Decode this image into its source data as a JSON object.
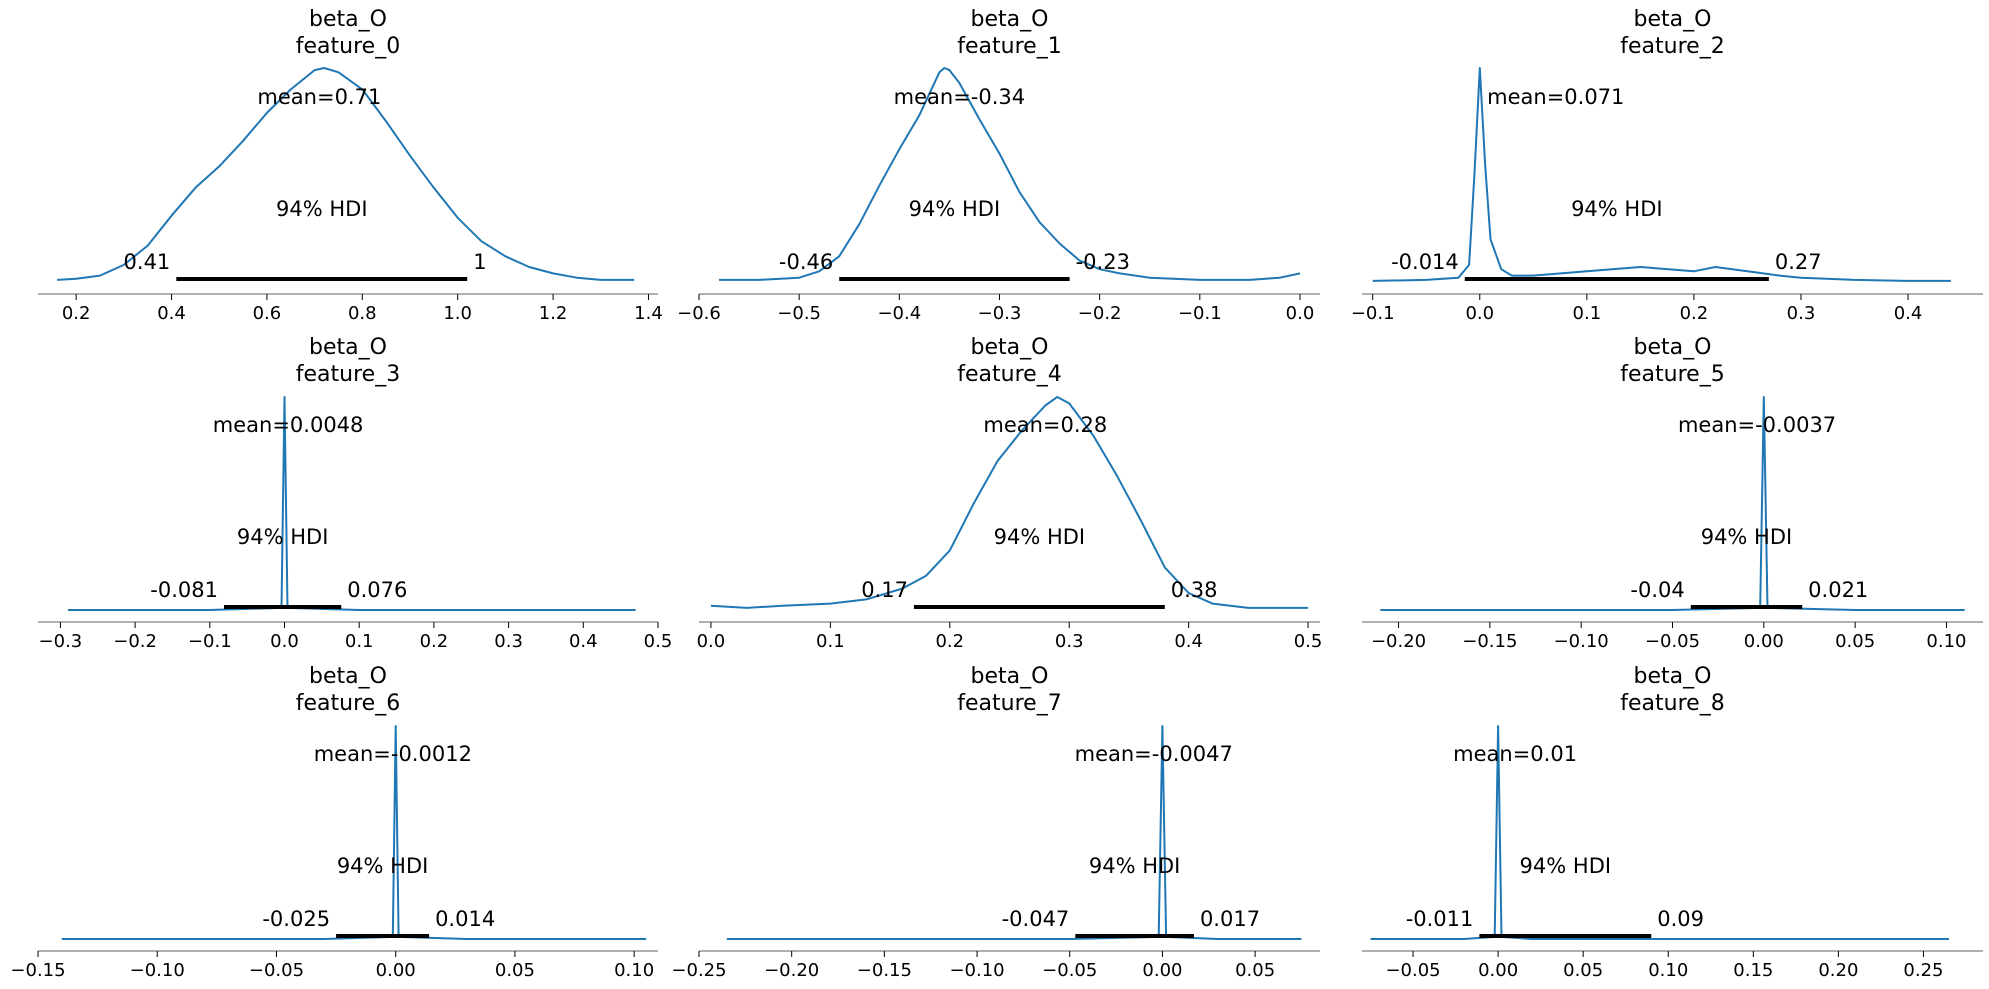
{
  "figure": {
    "curve_color": "#1f77b4",
    "hdi_color": "#000000",
    "axis_color": "#7f7f7f"
  },
  "chart_data": [
    {
      "type": "line",
      "variable": "beta_O",
      "feature": "feature_0",
      "title": "beta_O\nfeature_0",
      "mean": 0.71,
      "mean_label": "mean=0.71",
      "hdi_label": "94% HDI",
      "hdi": [
        0.41,
        1.02
      ],
      "hdi_low_label": "0.41",
      "hdi_high_label": "1",
      "xlim": [
        0.12,
        1.42
      ],
      "xticks": [
        0.2,
        0.4,
        0.6,
        0.8,
        1.0,
        1.2,
        1.4
      ],
      "xtick_labels": [
        "0.2",
        "0.4",
        "0.6",
        "0.8",
        "1.0",
        "1.2",
        "1.4"
      ],
      "density": {
        "x": [
          0.16,
          0.2,
          0.25,
          0.3,
          0.35,
          0.4,
          0.45,
          0.5,
          0.55,
          0.6,
          0.65,
          0.7,
          0.72,
          0.75,
          0.8,
          0.85,
          0.9,
          0.95,
          1.0,
          1.05,
          1.1,
          1.15,
          1.2,
          1.25,
          1.3,
          1.37
        ],
        "y": [
          0.01,
          0.015,
          0.03,
          0.08,
          0.17,
          0.31,
          0.44,
          0.54,
          0.66,
          0.79,
          0.9,
          0.99,
          1.0,
          0.98,
          0.9,
          0.75,
          0.59,
          0.44,
          0.3,
          0.19,
          0.12,
          0.07,
          0.04,
          0.02,
          0.01,
          0.01
        ]
      }
    },
    {
      "type": "line",
      "variable": "beta_O",
      "feature": "feature_1",
      "title": "beta_O\nfeature_1",
      "mean": -0.34,
      "mean_label": "mean=-0.34",
      "hdi_label": "94% HDI",
      "hdi": [
        -0.46,
        -0.23
      ],
      "hdi_low_label": "-0.46",
      "hdi_high_label": "-0.23",
      "xlim": [
        -0.6,
        0.02
      ],
      "xticks": [
        -0.6,
        -0.5,
        -0.4,
        -0.3,
        -0.2,
        -0.1,
        0.0
      ],
      "xtick_labels": [
        "−0.6",
        "−0.5",
        "−0.4",
        "−0.3",
        "−0.2",
        "−0.1",
        "0.0"
      ],
      "density": {
        "x": [
          -0.58,
          -0.54,
          -0.5,
          -0.48,
          -0.46,
          -0.44,
          -0.42,
          -0.4,
          -0.38,
          -0.36,
          -0.355,
          -0.35,
          -0.34,
          -0.32,
          -0.3,
          -0.28,
          -0.26,
          -0.24,
          -0.22,
          -0.2,
          -0.18,
          -0.15,
          -0.1,
          -0.05,
          -0.02,
          0.0
        ],
        "y": [
          0.01,
          0.01,
          0.02,
          0.05,
          0.12,
          0.27,
          0.45,
          0.62,
          0.78,
          0.98,
          1.0,
          0.99,
          0.93,
          0.76,
          0.6,
          0.42,
          0.28,
          0.18,
          0.1,
          0.06,
          0.04,
          0.02,
          0.01,
          0.01,
          0.02,
          0.04
        ]
      }
    },
    {
      "type": "line",
      "variable": "beta_O",
      "feature": "feature_2",
      "title": "beta_O\nfeature_2",
      "mean": 0.071,
      "mean_label": "mean=0.071",
      "hdi_label": "94% HDI",
      "hdi": [
        -0.014,
        0.27
      ],
      "hdi_low_label": "-0.014",
      "hdi_high_label": "0.27",
      "xlim": [
        -0.11,
        0.47
      ],
      "xticks": [
        -0.1,
        0.0,
        0.1,
        0.2,
        0.3,
        0.4
      ],
      "xtick_labels": [
        "−0.1",
        "0.0",
        "0.1",
        "0.2",
        "0.3",
        "0.4"
      ],
      "density": {
        "x": [
          -0.1,
          -0.05,
          -0.02,
          -0.01,
          -0.005,
          0.0,
          0.005,
          0.01,
          0.02,
          0.03,
          0.05,
          0.1,
          0.15,
          0.2,
          0.22,
          0.25,
          0.28,
          0.3,
          0.35,
          0.4,
          0.44
        ],
        "y": [
          0.005,
          0.01,
          0.02,
          0.08,
          0.5,
          1.0,
          0.55,
          0.2,
          0.06,
          0.03,
          0.03,
          0.05,
          0.07,
          0.05,
          0.07,
          0.05,
          0.03,
          0.02,
          0.01,
          0.005,
          0.005
        ]
      }
    },
    {
      "type": "line",
      "variable": "beta_O",
      "feature": "feature_3",
      "title": "beta_O\nfeature_3",
      "mean": 0.0048,
      "mean_label": "mean=0.0048",
      "hdi_label": "94% HDI",
      "hdi": [
        -0.081,
        0.076
      ],
      "hdi_low_label": "-0.081",
      "hdi_high_label": "0.076",
      "xlim": [
        -0.33,
        0.5
      ],
      "xticks": [
        -0.3,
        -0.2,
        -0.1,
        0.0,
        0.1,
        0.2,
        0.3,
        0.4,
        0.5
      ],
      "xtick_labels": [
        "−0.3",
        "−0.2",
        "−0.1",
        "0.0",
        "0.1",
        "0.2",
        "0.3",
        "0.4",
        "0.5"
      ],
      "density": {
        "x": [
          -0.29,
          -0.1,
          -0.004,
          0.0,
          0.004,
          0.1,
          0.47
        ],
        "y": [
          0.0,
          0.0,
          0.01,
          1.0,
          0.01,
          0.0,
          0.0
        ]
      }
    },
    {
      "type": "line",
      "variable": "beta_O",
      "feature": "feature_4",
      "title": "beta_O\nfeature_4",
      "mean": 0.28,
      "mean_label": "mean=0.28",
      "hdi_label": "94% HDI",
      "hdi": [
        0.17,
        0.38
      ],
      "hdi_low_label": "0.17",
      "hdi_high_label": "0.38",
      "xlim": [
        -0.01,
        0.51
      ],
      "xticks": [
        0.0,
        0.1,
        0.2,
        0.3,
        0.4,
        0.5
      ],
      "xtick_labels": [
        "0.0",
        "0.1",
        "0.2",
        "0.3",
        "0.4",
        "0.5"
      ],
      "density": {
        "x": [
          0.0,
          0.03,
          0.06,
          0.1,
          0.13,
          0.16,
          0.18,
          0.2,
          0.22,
          0.24,
          0.26,
          0.28,
          0.29,
          0.3,
          0.32,
          0.34,
          0.36,
          0.38,
          0.4,
          0.42,
          0.45,
          0.5
        ],
        "y": [
          0.02,
          0.01,
          0.02,
          0.03,
          0.05,
          0.1,
          0.16,
          0.28,
          0.5,
          0.7,
          0.84,
          0.96,
          1.0,
          0.97,
          0.82,
          0.63,
          0.42,
          0.2,
          0.08,
          0.03,
          0.01,
          0.01
        ]
      }
    },
    {
      "type": "line",
      "variable": "beta_O",
      "feature": "feature_5",
      "title": "beta_O\nfeature_5",
      "mean": -0.0037,
      "mean_label": "mean=-0.0037",
      "hdi_label": "94% HDI",
      "hdi": [
        -0.04,
        0.021
      ],
      "hdi_low_label": "-0.04",
      "hdi_high_label": "0.021",
      "xlim": [
        -0.22,
        0.12
      ],
      "xticks": [
        -0.2,
        -0.15,
        -0.1,
        -0.05,
        0.0,
        0.05,
        0.1
      ],
      "xtick_labels": [
        "−0.20",
        "−0.15",
        "−0.10",
        "−0.05",
        "0.00",
        "0.05",
        "0.10"
      ],
      "density": {
        "x": [
          -0.21,
          -0.05,
          -0.002,
          0.0,
          0.002,
          0.05,
          0.11
        ],
        "y": [
          0.0,
          0.0,
          0.01,
          1.0,
          0.01,
          0.0,
          0.0
        ]
      }
    },
    {
      "type": "line",
      "variable": "beta_O",
      "feature": "feature_6",
      "title": "beta_O\nfeature_6",
      "mean": -0.0012,
      "mean_label": "mean=-0.0012",
      "hdi_label": "94% HDI",
      "hdi": [
        -0.025,
        0.014
      ],
      "hdi_low_label": "-0.025",
      "hdi_high_label": "0.014",
      "xlim": [
        -0.15,
        0.11
      ],
      "xticks": [
        -0.15,
        -0.1,
        -0.05,
        0.0,
        0.05,
        0.1
      ],
      "xtick_labels": [
        "−0.15",
        "−0.10",
        "−0.05",
        "0.00",
        "0.05",
        "0.10"
      ],
      "density": {
        "x": [
          -0.14,
          -0.03,
          -0.0012,
          0.0,
          0.0012,
          0.03,
          0.105
        ],
        "y": [
          0.0,
          0.0,
          0.01,
          1.0,
          0.01,
          0.0,
          0.0
        ]
      }
    },
    {
      "type": "line",
      "variable": "beta_O",
      "feature": "feature_7",
      "title": "beta_O\nfeature_7",
      "mean": -0.0047,
      "mean_label": "mean=-0.0047",
      "hdi_label": "94% HDI",
      "hdi": [
        -0.047,
        0.017
      ],
      "hdi_low_label": "-0.047",
      "hdi_high_label": "0.017",
      "xlim": [
        -0.25,
        0.085
      ],
      "xticks": [
        -0.25,
        -0.2,
        -0.15,
        -0.1,
        -0.05,
        0.0,
        0.05
      ],
      "xtick_labels": [
        "−0.25",
        "−0.20",
        "−0.15",
        "−0.10",
        "−0.05",
        "0.00",
        "0.05"
      ],
      "density": {
        "x": [
          -0.235,
          -0.05,
          -0.002,
          0.0,
          0.002,
          0.03,
          0.075
        ],
        "y": [
          0.0,
          0.0,
          0.01,
          1.0,
          0.01,
          0.0,
          0.0
        ]
      }
    },
    {
      "type": "line",
      "variable": "beta_O",
      "feature": "feature_8",
      "title": "beta_O\nfeature_8",
      "mean": 0.01,
      "mean_label": "mean=0.01",
      "hdi_label": "94% HDI",
      "hdi": [
        -0.011,
        0.09
      ],
      "hdi_low_label": "-0.011",
      "hdi_high_label": "0.09",
      "xlim": [
        -0.08,
        0.285
      ],
      "xticks": [
        -0.05,
        0.0,
        0.05,
        0.1,
        0.15,
        0.2,
        0.25
      ],
      "xtick_labels": [
        "−0.05",
        "0.00",
        "0.05",
        "0.10",
        "0.15",
        "0.20",
        "0.25"
      ],
      "density": {
        "x": [
          -0.075,
          -0.02,
          -0.002,
          0.0,
          0.002,
          0.02,
          0.265
        ],
        "y": [
          0.0,
          0.0,
          0.01,
          1.0,
          0.01,
          0.0,
          0.0
        ]
      }
    }
  ]
}
